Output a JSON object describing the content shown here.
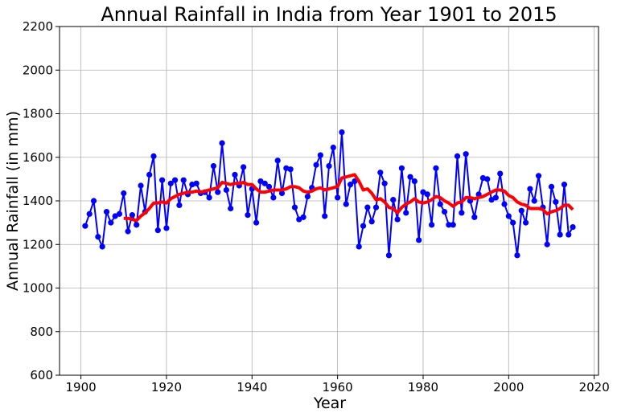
{
  "chart_data": {
    "type": "line",
    "title": "Annual Rainfall in India from Year 1901 to 2015",
    "xlabel": "Year",
    "ylabel": "Annual Rainfall (in mm)",
    "xlim": [
      1895,
      2021
    ],
    "ylim": [
      600,
      2200
    ],
    "xticks": [
      1900,
      1920,
      1940,
      1960,
      1980,
      2000,
      2020
    ],
    "yticks": [
      600,
      800,
      1000,
      1200,
      1400,
      1600,
      1800,
      2000,
      2200
    ],
    "grid": true,
    "series": [
      {
        "color": "#0000ff",
        "markers": true,
        "x": [
          1901,
          1902,
          1903,
          1904,
          1905,
          1906,
          1907,
          1908,
          1909,
          1910,
          1911,
          1912,
          1913,
          1914,
          1915,
          1916,
          1917,
          1918,
          1919,
          1920,
          1921,
          1922,
          1923,
          1924,
          1925,
          1926,
          1927,
          1928,
          1929,
          1930,
          1931,
          1932,
          1933,
          1934,
          1935,
          1936,
          1937,
          1938,
          1939,
          1940,
          1941,
          1942,
          1943,
          1944,
          1945,
          1946,
          1947,
          1948,
          1949,
          1950,
          1951,
          1952,
          1953,
          1954,
          1955,
          1956,
          1957,
          1958,
          1959,
          1960,
          1961,
          1962,
          1963,
          1964,
          1965,
          1966,
          1967,
          1968,
          1969,
          1970,
          1971,
          1972,
          1973,
          1974,
          1975,
          1976,
          1977,
          1978,
          1979,
          1980,
          1981,
          1982,
          1983,
          1984,
          1985,
          1986,
          1987,
          1988,
          1989,
          1990,
          1991,
          1992,
          1993,
          1994,
          1995,
          1996,
          1997,
          1998,
          1999,
          2000,
          2001,
          2002,
          2003,
          2004,
          2005,
          2006,
          2007,
          2008,
          2009,
          2010,
          2011,
          2012,
          2013,
          2014,
          2015
        ],
        "y": [
          1285,
          1340,
          1400,
          1235,
          1190,
          1350,
          1300,
          1330,
          1340,
          1435,
          1260,
          1335,
          1290,
          1470,
          1350,
          1520,
          1605,
          1265,
          1495,
          1275,
          1480,
          1495,
          1380,
          1495,
          1430,
          1475,
          1480,
          1435,
          1440,
          1415,
          1560,
          1440,
          1665,
          1450,
          1365,
          1520,
          1470,
          1555,
          1335,
          1455,
          1300,
          1490,
          1480,
          1465,
          1415,
          1585,
          1435,
          1550,
          1545,
          1370,
          1315,
          1325,
          1420,
          1460,
          1565,
          1610,
          1330,
          1560,
          1645,
          1415,
          1715,
          1385,
          1475,
          1490,
          1190,
          1285,
          1370,
          1305,
          1370,
          1530,
          1480,
          1150,
          1405,
          1315,
          1550,
          1345,
          1510,
          1490,
          1220,
          1440,
          1430,
          1290,
          1550,
          1385,
          1350,
          1290,
          1290,
          1605,
          1345,
          1615,
          1400,
          1325,
          1430,
          1505,
          1500,
          1405,
          1415,
          1525,
          1385,
          1330,
          1300,
          1150,
          1355,
          1300,
          1455,
          1400,
          1515,
          1370,
          1200,
          1465,
          1395,
          1245,
          1475,
          1245,
          1280
        ]
      },
      {
        "color": "#ff0000",
        "markers": false,
        "x": [
          1910,
          1911,
          1912,
          1913,
          1914,
          1915,
          1916,
          1917,
          1918,
          1919,
          1920,
          1921,
          1922,
          1923,
          1924,
          1925,
          1926,
          1927,
          1928,
          1929,
          1930,
          1931,
          1932,
          1933,
          1934,
          1935,
          1936,
          1937,
          1938,
          1939,
          1940,
          1941,
          1942,
          1943,
          1944,
          1945,
          1946,
          1947,
          1948,
          1949,
          1950,
          1951,
          1952,
          1953,
          1954,
          1955,
          1956,
          1957,
          1958,
          1959,
          1960,
          1961,
          1962,
          1963,
          1964,
          1965,
          1966,
          1967,
          1968,
          1969,
          1970,
          1971,
          1972,
          1973,
          1974,
          1975,
          1976,
          1977,
          1978,
          1979,
          1980,
          1981,
          1982,
          1983,
          1984,
          1985,
          1986,
          1987,
          1988,
          1989,
          1990,
          1991,
          1992,
          1993,
          1994,
          1995,
          1996,
          1997,
          1998,
          1999,
          2000,
          2001,
          2002,
          2003,
          2004,
          2005,
          2006,
          2007,
          2008,
          2009,
          2010,
          2011,
          2012,
          2013,
          2014,
          2015
        ],
        "y": [
          1320,
          1320,
          1315,
          1310,
          1330,
          1345,
          1365,
          1390,
          1390,
          1395,
          1390,
          1410,
          1420,
          1430,
          1435,
          1440,
          1440,
          1445,
          1440,
          1445,
          1450,
          1455,
          1460,
          1485,
          1480,
          1475,
          1480,
          1480,
          1485,
          1475,
          1475,
          1455,
          1440,
          1440,
          1445,
          1450,
          1450,
          1450,
          1455,
          1465,
          1465,
          1460,
          1445,
          1440,
          1445,
          1455,
          1460,
          1450,
          1455,
          1460,
          1465,
          1505,
          1510,
          1515,
          1520,
          1490,
          1450,
          1455,
          1435,
          1405,
          1410,
          1395,
          1370,
          1365,
          1345,
          1370,
          1385,
          1395,
          1410,
          1395,
          1390,
          1395,
          1405,
          1420,
          1415,
          1400,
          1390,
          1375,
          1390,
          1395,
          1415,
          1415,
          1410,
          1415,
          1420,
          1430,
          1440,
          1450,
          1450,
          1445,
          1425,
          1415,
          1395,
          1385,
          1380,
          1365,
          1365,
          1365,
          1360,
          1340,
          1350,
          1355,
          1365,
          1380,
          1380,
          1360
        ]
      }
    ]
  }
}
